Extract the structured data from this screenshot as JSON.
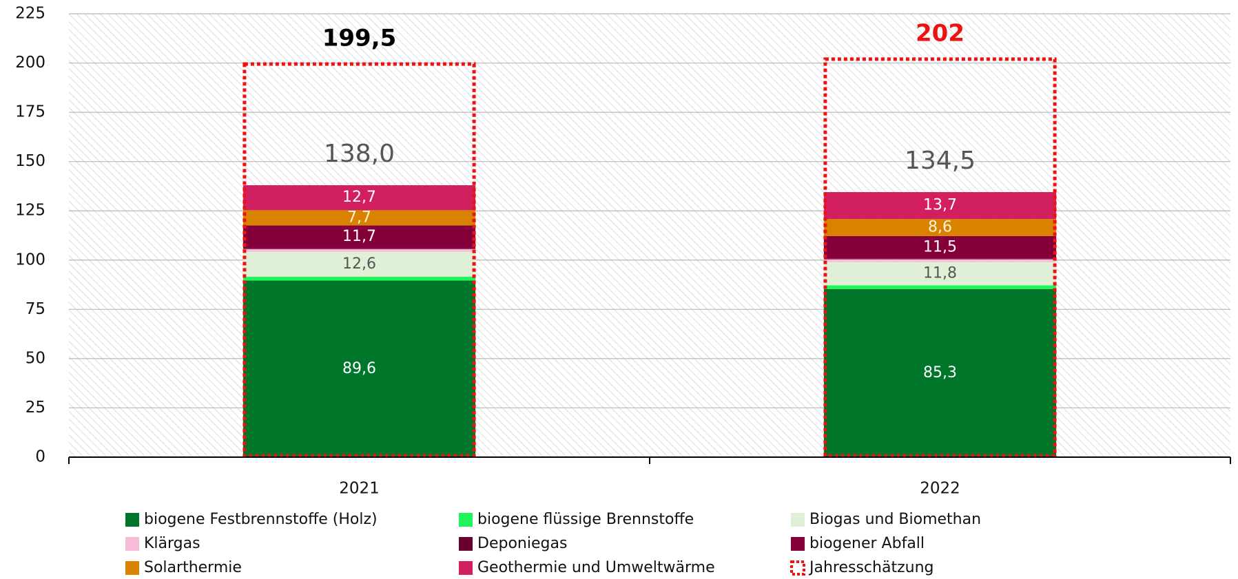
{
  "chart_data": {
    "type": "stacked_bar",
    "categories": [
      "2021",
      "2022"
    ],
    "series": [
      {
        "name": "biogene Festbrennstoffe (Holz)",
        "color": "#00762a",
        "label_color": "#ffffff",
        "values": [
          89.6,
          85.3
        ],
        "value_labels": [
          "89,6",
          "85,3"
        ]
      },
      {
        "name": "biogene flüssige Brennstoffe",
        "color": "#1ef55a",
        "values": [
          2.0,
          1.9
        ]
      },
      {
        "name": "Biogas und Biomethan",
        "color": "#dff0d6",
        "label_color": "#555555",
        "values": [
          12.6,
          11.8
        ],
        "value_labels": [
          "12,6",
          "11,8"
        ]
      },
      {
        "name": "Klärgas",
        "color": "#f8bcd8",
        "values": [
          1.4,
          1.4
        ]
      },
      {
        "name": "Deponiegas",
        "color": "#6a0030",
        "values": [
          0.3,
          0.3
        ]
      },
      {
        "name": "biogener Abfall",
        "color": "#85003a",
        "label_color": "#ffffff",
        "values": [
          11.7,
          11.5
        ],
        "value_labels": [
          "11,7",
          "11,5"
        ]
      },
      {
        "name": "Solarthermie",
        "color": "#d98200",
        "label_color": "#fff4d0",
        "values": [
          7.7,
          8.6
        ],
        "value_labels": [
          "7,7",
          "8,6"
        ]
      },
      {
        "name": "Geothermie und Umweltwärme",
        "color": "#d21f60",
        "label_color": "#ffffff",
        "values": [
          12.7,
          13.7
        ],
        "value_labels": [
          "12,7",
          "13,7"
        ]
      }
    ],
    "totals": {
      "values": [
        138.0,
        134.5
      ],
      "value_labels": [
        "138,0",
        "134,5"
      ],
      "color": "#555555"
    },
    "estimate": {
      "name": "Jahresschätzung",
      "color": "#ee1111",
      "values": [
        199.5,
        202
      ],
      "value_labels": [
        "199,5",
        "202"
      ],
      "label_colors": [
        "#000000",
        "#ee1111"
      ]
    },
    "ylim": [
      0,
      225
    ],
    "yticks": [
      0,
      25,
      50,
      75,
      100,
      125,
      150,
      175,
      200,
      225
    ],
    "grid": true
  }
}
